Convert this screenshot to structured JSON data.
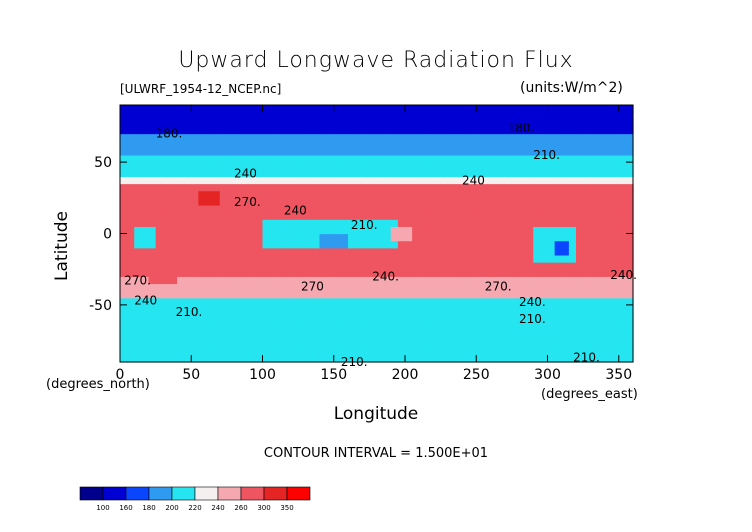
{
  "chart_data": {
    "type": "heatmap",
    "title": "Upward Longwave Radiation Flux",
    "source_label": "[ULWRF_1954-12_NCEP.nc]",
    "units_label": "(units:W/m^2)",
    "xlabel": "Longitude",
    "ylabel": "Latitude",
    "x_unit_note": "(degrees_east)",
    "y_unit_note": "(degrees_north)",
    "xlim": [
      0,
      360
    ],
    "ylim": [
      -90,
      90
    ],
    "x_ticks": [
      0,
      50,
      100,
      150,
      200,
      250,
      300,
      350
    ],
    "y_ticks": [
      50,
      0,
      -50
    ],
    "contour_interval_label": "CONTOUR INTERVAL = 1.500E+01",
    "contour_labels": [
      {
        "text": "180.",
        "lon": 25,
        "lat": 70
      },
      {
        "text": "180.",
        "lon": 272,
        "lat": 74
      },
      {
        "text": "210.",
        "lon": 290,
        "lat": 55
      },
      {
        "text": "240",
        "lon": 80,
        "lat": 42
      },
      {
        "text": "240",
        "lon": 240,
        "lat": 37
      },
      {
        "text": "270.",
        "lon": 80,
        "lat": 22
      },
      {
        "text": "240",
        "lon": 115,
        "lat": 16
      },
      {
        "text": "210.",
        "lon": 162,
        "lat": 6
      },
      {
        "text": "270.",
        "lon": 3,
        "lat": -33
      },
      {
        "text": "240",
        "lon": 10,
        "lat": -47
      },
      {
        "text": "270",
        "lon": 127,
        "lat": -37
      },
      {
        "text": "240.",
        "lon": 177,
        "lat": -30
      },
      {
        "text": "270.",
        "lon": 256,
        "lat": -37
      },
      {
        "text": "240.",
        "lon": 280,
        "lat": -48
      },
      {
        "text": "240.",
        "lon": 344,
        "lat": -29
      },
      {
        "text": "210.",
        "lon": 39,
        "lat": -55
      },
      {
        "text": "210.",
        "lon": 280,
        "lat": -60
      },
      {
        "text": "210.",
        "lon": 155,
        "lat": -90
      },
      {
        "text": "210.",
        "lon": 318,
        "lat": -87
      }
    ],
    "colorbar": {
      "levels": [
        "100",
        "160",
        "180",
        "200",
        "220",
        "240",
        "260",
        "300",
        "350"
      ],
      "colors": [
        "#00008c",
        "#0000d2",
        "#0a46ff",
        "#2e9bf0",
        "#25e6f0",
        "#f4f0f0",
        "#f5a8b0",
        "#ef5560",
        "#e52424",
        "#ff0000"
      ]
    },
    "zones": [
      {
        "lat": [
          70,
          90
        ],
        "value": 155
      },
      {
        "lat": [
          55,
          70
        ],
        "value": 180
      },
      {
        "lat": [
          42,
          55
        ],
        "value": 205
      },
      {
        "lat": [
          35,
          42
        ],
        "value": 230
      },
      {
        "lat": [
          -32,
          35
        ],
        "value": 262
      },
      {
        "lat": [
          -45,
          -32
        ],
        "value": 245
      },
      {
        "lat": [
          -55,
          -45
        ],
        "value": 215
      },
      {
        "lat": [
          -78,
          -55
        ],
        "value": 205
      },
      {
        "lat": [
          -90,
          -78
        ],
        "value": 215
      }
    ],
    "anomalies": [
      {
        "lon": [
          10,
          25
        ],
        "lat": [
          -10,
          5
        ],
        "value": 205
      },
      {
        "lon": [
          100,
          195
        ],
        "lat": [
          -10,
          12
        ],
        "value": 215
      },
      {
        "lon": [
          140,
          160
        ],
        "lat": [
          -10,
          0
        ],
        "value": 190
      },
      {
        "lon": [
          190,
          215
        ],
        "lat": [
          -5,
          5
        ],
        "value": 240
      },
      {
        "lon": [
          285,
          320
        ],
        "lat": [
          -20,
          5
        ],
        "value": 200
      },
      {
        "lon": [
          305,
          315
        ],
        "lat": [
          -15,
          -5
        ],
        "value": 175
      },
      {
        "lon": [
          205,
          290
        ],
        "lat": [
          -25,
          20
        ],
        "value": 280
      },
      {
        "lon": [
          0,
          10
        ],
        "lat": [
          20,
          30
        ],
        "value": 280
      },
      {
        "lon": [
          20,
          40
        ],
        "lat": [
          -35,
          -22
        ],
        "value": 285
      },
      {
        "lon": [
          55,
          70
        ],
        "lat": [
          20,
          30
        ],
        "value": 300
      }
    ]
  }
}
